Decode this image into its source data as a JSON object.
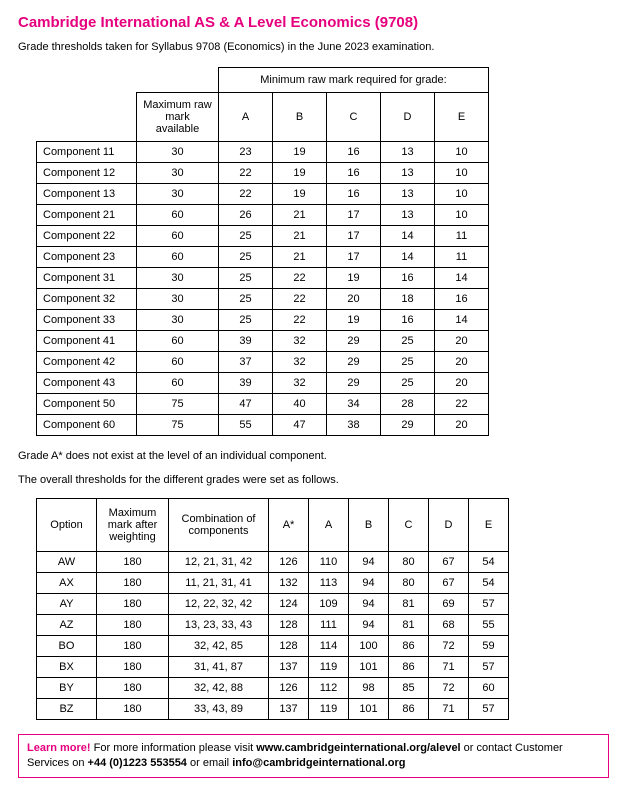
{
  "header": {
    "title": "Cambridge International AS & A Level Economics (9708)",
    "subtitle": "Grade thresholds taken for Syllabus 9708 (Economics) in the June 2023 examination."
  },
  "table1": {
    "spanHeader": "Minimum raw mark required for grade:",
    "maxHeader": "Maximum raw mark available",
    "grades": [
      "A",
      "B",
      "C",
      "D",
      "E"
    ],
    "rows": [
      {
        "label": "Component 11",
        "max": "30",
        "v": [
          "23",
          "19",
          "16",
          "13",
          "10"
        ]
      },
      {
        "label": "Component 12",
        "max": "30",
        "v": [
          "22",
          "19",
          "16",
          "13",
          "10"
        ]
      },
      {
        "label": "Component 13",
        "max": "30",
        "v": [
          "22",
          "19",
          "16",
          "13",
          "10"
        ]
      },
      {
        "label": "Component 21",
        "max": "60",
        "v": [
          "26",
          "21",
          "17",
          "13",
          "10"
        ]
      },
      {
        "label": "Component 22",
        "max": "60",
        "v": [
          "25",
          "21",
          "17",
          "14",
          "11"
        ]
      },
      {
        "label": "Component 23",
        "max": "60",
        "v": [
          "25",
          "21",
          "17",
          "14",
          "11"
        ]
      },
      {
        "label": "Component 31",
        "max": "30",
        "v": [
          "25",
          "22",
          "19",
          "16",
          "14"
        ]
      },
      {
        "label": "Component 32",
        "max": "30",
        "v": [
          "25",
          "22",
          "20",
          "18",
          "16"
        ]
      },
      {
        "label": "Component 33",
        "max": "30",
        "v": [
          "25",
          "22",
          "19",
          "16",
          "14"
        ]
      },
      {
        "label": "Component 41",
        "max": "60",
        "v": [
          "39",
          "32",
          "29",
          "25",
          "20"
        ]
      },
      {
        "label": "Component 42",
        "max": "60",
        "v": [
          "37",
          "32",
          "29",
          "25",
          "20"
        ]
      },
      {
        "label": "Component 43",
        "max": "60",
        "v": [
          "39",
          "32",
          "29",
          "25",
          "20"
        ]
      },
      {
        "label": "Component 50",
        "max": "75",
        "v": [
          "47",
          "40",
          "34",
          "28",
          "22"
        ]
      },
      {
        "label": "Component 60",
        "max": "75",
        "v": [
          "55",
          "47",
          "38",
          "29",
          "20"
        ]
      }
    ]
  },
  "notes": {
    "n1": "Grade A* does not exist at the level of an individual component.",
    "n2": "The overall thresholds for the different grades were set as follows."
  },
  "table2": {
    "headers": {
      "option": "Option",
      "max": "Maximum mark after weighting",
      "combo": "Combination of components",
      "grades": [
        "A*",
        "A",
        "B",
        "C",
        "D",
        "E"
      ]
    },
    "rows": [
      {
        "opt": "AW",
        "max": "180",
        "combo": "12, 21, 31, 42",
        "v": [
          "126",
          "110",
          "94",
          "80",
          "67",
          "54"
        ]
      },
      {
        "opt": "AX",
        "max": "180",
        "combo": "11, 21, 31, 41",
        "v": [
          "132",
          "113",
          "94",
          "80",
          "67",
          "54"
        ]
      },
      {
        "opt": "AY",
        "max": "180",
        "combo": "12, 22, 32, 42",
        "v": [
          "124",
          "109",
          "94",
          "81",
          "69",
          "57"
        ]
      },
      {
        "opt": "AZ",
        "max": "180",
        "combo": "13, 23, 33, 43",
        "v": [
          "128",
          "111",
          "94",
          "81",
          "68",
          "55"
        ]
      },
      {
        "opt": "BO",
        "max": "180",
        "combo": "32, 42, 85",
        "v": [
          "128",
          "114",
          "100",
          "86",
          "72",
          "59"
        ]
      },
      {
        "opt": "BX",
        "max": "180",
        "combo": "31, 41, 87",
        "v": [
          "137",
          "119",
          "101",
          "86",
          "71",
          "57"
        ]
      },
      {
        "opt": "BY",
        "max": "180",
        "combo": "32, 42, 88",
        "v": [
          "126",
          "112",
          "98",
          "85",
          "72",
          "60"
        ]
      },
      {
        "opt": "BZ",
        "max": "180",
        "combo": "33, 43, 89",
        "v": [
          "137",
          "119",
          "101",
          "86",
          "71",
          "57"
        ]
      }
    ]
  },
  "footer": {
    "learn": "Learn more!",
    "t1": " For more information please visit ",
    "url": "www.cambridgeinternational.org/alevel",
    "t2": " or contact Customer Services on ",
    "phone": "+44 (0)1223 553554",
    "t3": " or email ",
    "email": "info@cambridgeinternational.org"
  },
  "style": {
    "accent": "#e6007e",
    "text": "#000000",
    "bg": "#ffffff",
    "font": "Arial",
    "titleSize": 15,
    "bodySize": 11
  }
}
